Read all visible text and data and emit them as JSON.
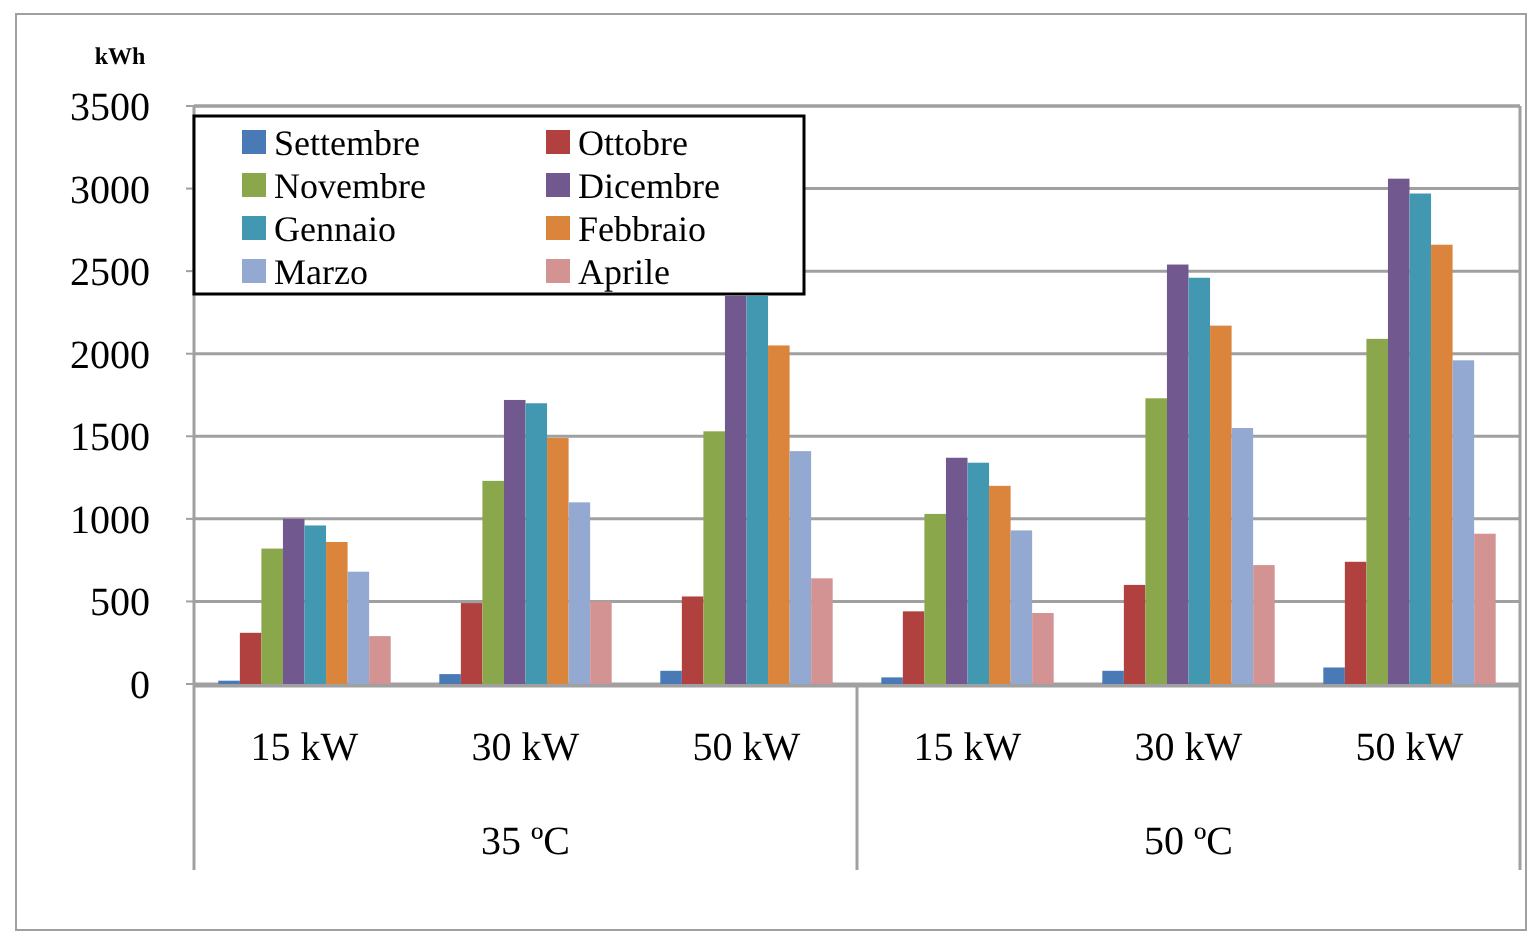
{
  "chart_data": {
    "type": "bar",
    "ylabel": "kWh",
    "categories": [
      "15 kW",
      "30 kW",
      "50 kW",
      "15 kW",
      "30 kW",
      "50 kW"
    ],
    "annotations": [
      "35 ºC",
      "50 ºC"
    ],
    "series": [
      {
        "name": "Settembre",
        "color": "#4a7ab5",
        "values": [
          20,
          60,
          80,
          40,
          80,
          100
        ]
      },
      {
        "name": "Ottobre",
        "color": "#b0413e",
        "values": [
          310,
          490,
          530,
          440,
          600,
          740
        ]
      },
      {
        "name": "Novembre",
        "color": "#8aa84b",
        "values": [
          820,
          1230,
          1530,
          1030,
          1730,
          2090
        ]
      },
      {
        "name": "Dicembre",
        "color": "#71588f",
        "values": [
          1000,
          1720,
          2350,
          1370,
          2540,
          3060
        ]
      },
      {
        "name": "Gennaio",
        "color": "#4298b0",
        "values": [
          960,
          1700,
          2350,
          1340,
          2460,
          2970
        ]
      },
      {
        "name": "Febbraio",
        "color": "#db843c",
        "values": [
          860,
          1490,
          2050,
          1200,
          2170,
          2660
        ]
      },
      {
        "name": "Marzo",
        "color": "#94a9d1",
        "values": [
          680,
          1100,
          1410,
          930,
          1550,
          1960
        ]
      },
      {
        "name": "Aprile",
        "color": "#d39393",
        "values": [
          290,
          500,
          640,
          430,
          720,
          910
        ]
      }
    ],
    "ylim": [
      0,
      3500
    ],
    "yticks": [
      0,
      500,
      1000,
      1500,
      2000,
      2500,
      3000,
      3500
    ],
    "grid": "y",
    "legend": "top left"
  }
}
